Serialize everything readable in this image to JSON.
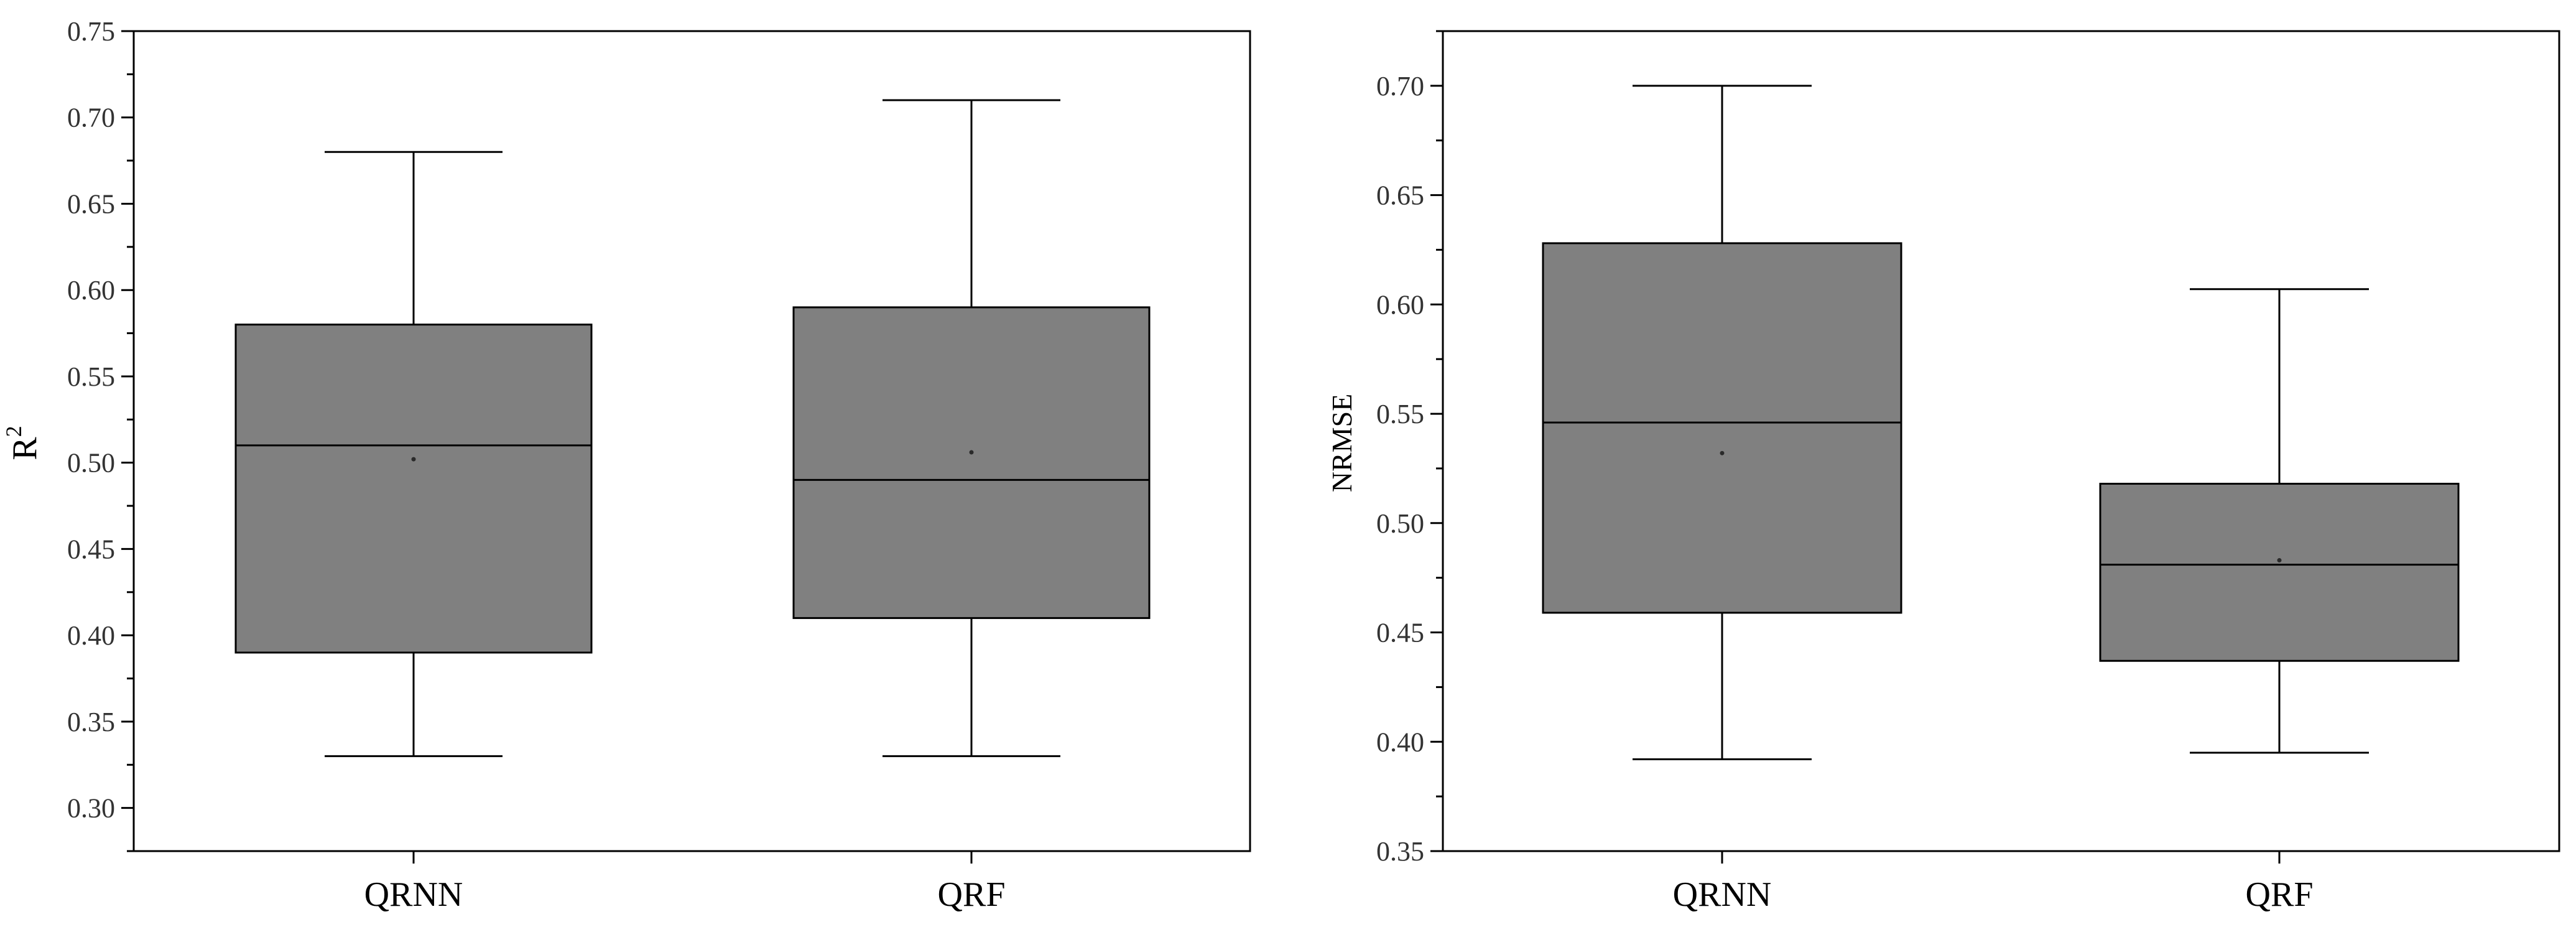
{
  "colors": {
    "box_fill": "#808080",
    "line": "#000000",
    "mean_dot": "#2a2a2a"
  },
  "chart_data": [
    {
      "type": "boxplot",
      "ylabel": "R",
      "ylabel_superscript": "2",
      "ylim": [
        0.275,
        0.75
      ],
      "yticks": [
        "0.30",
        "0.35",
        "0.40",
        "0.45",
        "0.50",
        "0.55",
        "0.60",
        "0.65",
        "0.70",
        "0.75"
      ],
      "categories": [
        "QRNN",
        "QRF"
      ],
      "boxes": [
        {
          "name": "QRNN",
          "min": 0.33,
          "q1": 0.39,
          "median": 0.51,
          "q3": 0.58,
          "max": 0.68,
          "mean": 0.502
        },
        {
          "name": "QRF",
          "min": 0.33,
          "q1": 0.41,
          "median": 0.49,
          "q3": 0.59,
          "max": 0.71,
          "mean": 0.506
        }
      ]
    },
    {
      "type": "boxplot",
      "ylabel": "NRMSE",
      "ylabel_superscript": "",
      "ylim": [
        0.35,
        0.725
      ],
      "yticks": [
        "0.35",
        "0.40",
        "0.45",
        "0.50",
        "0.55",
        "0.60",
        "0.65",
        "0.70"
      ],
      "categories": [
        "QRNN",
        "QRF"
      ],
      "boxes": [
        {
          "name": "QRNN",
          "min": 0.392,
          "q1": 0.459,
          "median": 0.546,
          "q3": 0.628,
          "max": 0.7,
          "mean": 0.532
        },
        {
          "name": "QRF",
          "min": 0.395,
          "q1": 0.437,
          "median": 0.481,
          "q3": 0.518,
          "max": 0.607,
          "mean": 0.483
        }
      ]
    }
  ]
}
